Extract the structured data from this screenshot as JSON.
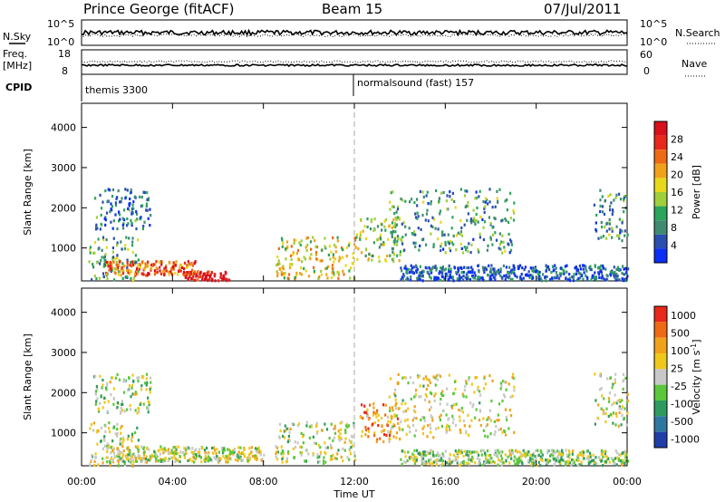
{
  "header": {
    "station": "Prince George (fitACF)",
    "beam": "Beam 15",
    "date": "07/Jul/2011"
  },
  "strips": {
    "nsky_label": "N.Sky",
    "nsky_ticks": [
      "10^5",
      "10^0"
    ],
    "nsearch_label": "N.Search",
    "nsearch_ticks": [
      "10^5",
      "10^0"
    ],
    "freq_label_1": "Freq.",
    "freq_label_2": "[MHz]",
    "freq_ticks": [
      "18",
      "8"
    ],
    "nave_label": "Nave",
    "nave_ticks": [
      "60",
      "0"
    ],
    "cpid_label": "CPID",
    "cpid_segments": [
      "themis 3300",
      "normalsound (fast) 157"
    ]
  },
  "chart_data": [
    {
      "type": "heatmap",
      "name": "power-panel",
      "ylabel": "Slant Range [km]",
      "yticks": [
        "1000",
        "2000",
        "3000",
        "4000"
      ],
      "ylim": [
        180,
        4600
      ],
      "xlim_hours": [
        0,
        24
      ],
      "colorbar_label": "Power [dB]",
      "colorbar_ticks": [
        "4",
        "8",
        "12",
        "16",
        "20",
        "24",
        "28"
      ],
      "colorbar_colors": [
        "#0a2ef5",
        "#2a4fb0",
        "#3f8a70",
        "#2aa55a",
        "#9fcf3a",
        "#e8d81c",
        "#f0a21a",
        "#ee6a14",
        "#e8281a",
        "#d8101a"
      ],
      "scatter_regions": [
        {
          "x": [
            0.3,
            2.5
          ],
          "y": [
            200,
            1300
          ],
          "level": 0.35
        },
        {
          "x": [
            1.0,
            5.0
          ],
          "y": [
            350,
            700
          ],
          "level": 0.75
        },
        {
          "x": [
            4.5,
            6.5
          ],
          "y": [
            220,
            450
          ],
          "level": 0.95
        },
        {
          "x": [
            0.5,
            3.0
          ],
          "y": [
            1500,
            2500
          ],
          "level": 0.2
        },
        {
          "x": [
            8.5,
            12.0
          ],
          "y": [
            250,
            1300
          ],
          "level": 0.55
        },
        {
          "x": [
            12.0,
            14.0
          ],
          "y": [
            700,
            1800
          ],
          "level": 0.45
        },
        {
          "x": [
            13.5,
            19.0
          ],
          "y": [
            900,
            2500
          ],
          "level": 0.3
        },
        {
          "x": [
            14.0,
            24.0
          ],
          "y": [
            220,
            600
          ],
          "level": 0.15
        },
        {
          "x": [
            22.5,
            24.0
          ],
          "y": [
            1200,
            2500
          ],
          "level": 0.3
        }
      ]
    },
    {
      "type": "heatmap",
      "name": "velocity-panel",
      "ylabel": "Slant Range [km]",
      "yticks": [
        "1000",
        "2000",
        "3000",
        "4000"
      ],
      "ylim": [
        180,
        4600
      ],
      "xlim_hours": [
        0,
        24
      ],
      "xticks": [
        "00:00",
        "04:00",
        "08:00",
        "12:00",
        "16:00",
        "20:00",
        "00:00"
      ],
      "xlabel": "Time UT",
      "colorbar_label": "Velocity [m s",
      "colorbar_label_sup": "-1",
      "colorbar_label_end": "]",
      "colorbar_ticks": [
        "1000",
        "500",
        "100",
        "25",
        "-25",
        "-100",
        "-500",
        "-1000"
      ],
      "colorbar_colors": [
        "#1f3ea8",
        "#2e78a0",
        "#2e9b5e",
        "#5ac83a",
        "#c8c8c8",
        "#f0c81c",
        "#f0a21a",
        "#ee6a14",
        "#e8281a"
      ],
      "scatter_regions": [
        {
          "x": [
            0.3,
            2.5
          ],
          "y": [
            200,
            1300
          ],
          "level": 0.5
        },
        {
          "x": [
            1.0,
            8.0
          ],
          "y": [
            300,
            700
          ],
          "level": 0.5
        },
        {
          "x": [
            0.5,
            3.0
          ],
          "y": [
            1500,
            2500
          ],
          "level": 0.45
        },
        {
          "x": [
            8.5,
            12.0
          ],
          "y": [
            250,
            1300
          ],
          "level": 0.5
        },
        {
          "x": [
            12.2,
            14.0
          ],
          "y": [
            800,
            1800
          ],
          "level": 0.75
        },
        {
          "x": [
            13.5,
            19.0
          ],
          "y": [
            900,
            2500
          ],
          "level": 0.55
        },
        {
          "x": [
            14.0,
            24.0
          ],
          "y": [
            220,
            600
          ],
          "level": 0.45
        },
        {
          "x": [
            22.5,
            24.0
          ],
          "y": [
            1200,
            2500
          ],
          "level": 0.5
        }
      ]
    }
  ]
}
